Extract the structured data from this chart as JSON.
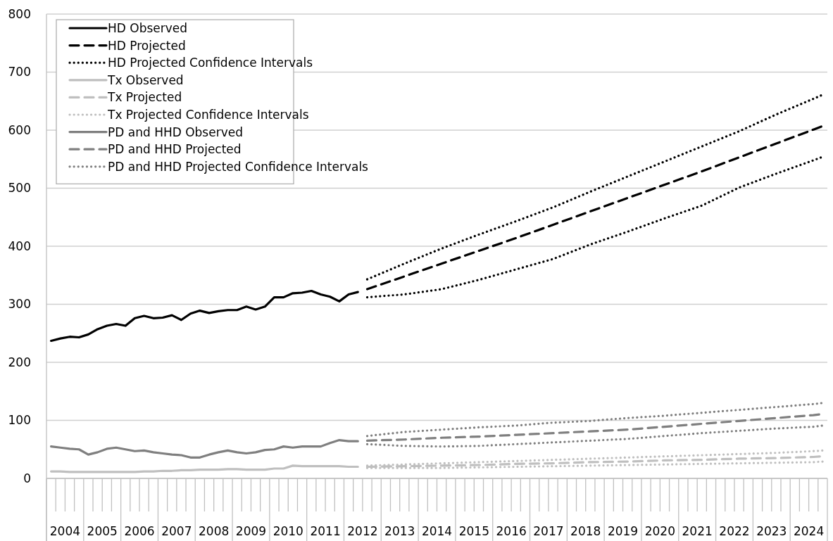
{
  "chart_data": {
    "type": "line",
    "xlim": [
      2004,
      2025
    ],
    "ylim": [
      0,
      800
    ],
    "yticks": [
      0,
      100,
      200,
      300,
      400,
      500,
      600,
      700,
      800
    ],
    "grid": "y",
    "legend": "top left",
    "xticks": [
      {
        "value": 2004,
        "label": null
      },
      {
        "value": 2004.25,
        "label": null
      },
      {
        "value": 2004.5,
        "label": "2004"
      },
      {
        "value": 2004.75,
        "label": null
      },
      {
        "value": 2005,
        "label": null
      },
      {
        "value": 2005.25,
        "label": null
      },
      {
        "value": 2005.5,
        "label": "2005"
      },
      {
        "value": 2005.75,
        "label": null
      },
      {
        "value": 2006,
        "label": null
      },
      {
        "value": 2006.25,
        "label": null
      },
      {
        "value": 2006.5,
        "label": "2006"
      },
      {
        "value": 2006.75,
        "label": null
      },
      {
        "value": 2007,
        "label": null
      },
      {
        "value": 2007.25,
        "label": null
      },
      {
        "value": 2007.5,
        "label": "2007"
      },
      {
        "value": 2007.75,
        "label": null
      },
      {
        "value": 2008,
        "label": null
      },
      {
        "value": 2008.25,
        "label": null
      },
      {
        "value": 2008.5,
        "label": "2008"
      },
      {
        "value": 2008.75,
        "label": null
      },
      {
        "value": 2009,
        "label": null
      },
      {
        "value": 2009.25,
        "label": null
      },
      {
        "value": 2009.5,
        "label": "2009"
      },
      {
        "value": 2009.75,
        "label": null
      },
      {
        "value": 2010,
        "label": null
      },
      {
        "value": 2010.25,
        "label": null
      },
      {
        "value": 2010.5,
        "label": "2010"
      },
      {
        "value": 2010.75,
        "label": null
      },
      {
        "value": 2011,
        "label": null
      },
      {
        "value": 2011.25,
        "label": null
      },
      {
        "value": 2011.5,
        "label": "2011"
      },
      {
        "value": 2011.75,
        "label": null
      },
      {
        "value": 2012,
        "label": null
      },
      {
        "value": 2012.25,
        "label": null
      },
      {
        "value": 2012.5,
        "label": "2012"
      },
      {
        "value": 2012.75,
        "label": null
      },
      {
        "value": 2013,
        "label": null
      },
      {
        "value": 2013.25,
        "label": null
      },
      {
        "value": 2013.5,
        "label": "2013"
      },
      {
        "value": 2013.75,
        "label": null
      },
      {
        "value": 2014,
        "label": null
      },
      {
        "value": 2014.25,
        "label": null
      },
      {
        "value": 2014.5,
        "label": "2014"
      },
      {
        "value": 2014.75,
        "label": null
      },
      {
        "value": 2015,
        "label": null
      },
      {
        "value": 2015.25,
        "label": null
      },
      {
        "value": 2015.5,
        "label": "2015"
      },
      {
        "value": 2015.75,
        "label": null
      },
      {
        "value": 2016,
        "label": null
      },
      {
        "value": 2016.25,
        "label": null
      },
      {
        "value": 2016.5,
        "label": "2016"
      },
      {
        "value": 2016.75,
        "label": null
      },
      {
        "value": 2017,
        "label": null
      },
      {
        "value": 2017.25,
        "label": null
      },
      {
        "value": 2017.5,
        "label": "2017"
      },
      {
        "value": 2017.75,
        "label": null
      },
      {
        "value": 2018,
        "label": null
      },
      {
        "value": 2018.25,
        "label": null
      },
      {
        "value": 2018.5,
        "label": "2018"
      },
      {
        "value": 2018.75,
        "label": null
      },
      {
        "value": 2019,
        "label": null
      },
      {
        "value": 2019.25,
        "label": null
      },
      {
        "value": 2019.5,
        "label": "2019"
      },
      {
        "value": 2019.75,
        "label": null
      },
      {
        "value": 2020,
        "label": null
      },
      {
        "value": 2020.25,
        "label": null
      },
      {
        "value": 2020.5,
        "label": "2020"
      },
      {
        "value": 2020.75,
        "label": null
      },
      {
        "value": 2021,
        "label": null
      },
      {
        "value": 2021.25,
        "label": null
      },
      {
        "value": 2021.5,
        "label": "2021"
      },
      {
        "value": 2021.75,
        "label": null
      },
      {
        "value": 2022,
        "label": null
      },
      {
        "value": 2022.25,
        "label": null
      },
      {
        "value": 2022.5,
        "label": "2022"
      },
      {
        "value": 2022.75,
        "label": null
      },
      {
        "value": 2023,
        "label": null
      },
      {
        "value": 2023.25,
        "label": null
      },
      {
        "value": 2023.5,
        "label": "2023"
      },
      {
        "value": 2023.75,
        "label": null
      },
      {
        "value": 2024,
        "label": null
      },
      {
        "value": 2024.25,
        "label": null
      },
      {
        "value": 2024.5,
        "label": "2024"
      },
      {
        "value": 2024.75,
        "label": null
      },
      {
        "value": 2025,
        "label": null
      }
    ],
    "series": [
      {
        "name": "HD Observed",
        "color": "#000000",
        "line_style": "solid",
        "x": [
          2004.125,
          2004.375,
          2004.625,
          2004.875,
          2005.125,
          2005.375,
          2005.625,
          2005.875,
          2006.125,
          2006.375,
          2006.625,
          2006.875,
          2007.125,
          2007.375,
          2007.625,
          2007.875,
          2008.125,
          2008.375,
          2008.625,
          2008.875,
          2009.125,
          2009.375,
          2009.625,
          2009.875,
          2010.125,
          2010.375,
          2010.625,
          2010.875,
          2011.125,
          2011.375,
          2011.625,
          2011.875,
          2012.125,
          2012.375
        ],
        "values": [
          237,
          241,
          244,
          243,
          248,
          257,
          263,
          266,
          263,
          276,
          280,
          276,
          277,
          281,
          273,
          284,
          289,
          285,
          288,
          290,
          290,
          296,
          291,
          296,
          312,
          312,
          319,
          320,
          323,
          317,
          313,
          305,
          317,
          321
        ]
      },
      {
        "name": "HD Projected",
        "color": "#000000",
        "line_style": "dashed",
        "x": [
          2012.625,
          2013.625,
          2014.625,
          2015.625,
          2016.625,
          2017.625,
          2018.625,
          2019.625,
          2020.625,
          2021.625,
          2022.625,
          2023.625,
          2024.625,
          2024.875
        ],
        "values": [
          326,
          348,
          370,
          392,
          414,
          437,
          460,
          483,
          506,
          529,
          553,
          577,
          601,
          607
        ]
      },
      {
        "name": "HD Projected Confidence Intervals",
        "color": "#000000",
        "line_style": "dotted",
        "x": [
          2012.625,
          2013.625,
          2014.625,
          2015.625,
          2016.625,
          2017.625,
          2018.625,
          2019.625,
          2020.625,
          2021.625,
          2022.625,
          2023.625,
          2024.625,
          2024.875
        ],
        "values": [
          343,
          370,
          396,
          420,
          443,
          467,
          494,
          520,
          546,
          572,
          598,
          627,
          654,
          661
        ]
      },
      {
        "color": "#000000",
        "line_style": "dotted",
        "x": [
          2012.625,
          2013.625,
          2014.625,
          2015.625,
          2016.625,
          2017.625,
          2018.625,
          2019.625,
          2020.625,
          2021.625,
          2022.625,
          2023.625,
          2024.625,
          2024.875
        ],
        "values": [
          312,
          317,
          326,
          342,
          360,
          378,
          403,
          425,
          448,
          470,
          501,
          525,
          548,
          554
        ]
      },
      {
        "name": "Tx Observed",
        "color": "#bfbfbf",
        "line_style": "solid",
        "x": [
          2004.125,
          2004.375,
          2004.625,
          2004.875,
          2005.125,
          2005.375,
          2005.625,
          2005.875,
          2006.125,
          2006.375,
          2006.625,
          2006.875,
          2007.125,
          2007.375,
          2007.625,
          2007.875,
          2008.125,
          2008.375,
          2008.625,
          2008.875,
          2009.125,
          2009.375,
          2009.625,
          2009.875,
          2010.125,
          2010.375,
          2010.625,
          2010.875,
          2011.125,
          2011.375,
          2011.625,
          2011.875,
          2012.125,
          2012.375
        ],
        "values": [
          12,
          12,
          11,
          11,
          11,
          11,
          11,
          11,
          11,
          11,
          12,
          12,
          13,
          13,
          14,
          14,
          15,
          15,
          15,
          16,
          16,
          15,
          15,
          15,
          17,
          17,
          22,
          21,
          21,
          21,
          21,
          21,
          20,
          20
        ]
      },
      {
        "name": "Tx Projected",
        "color": "#bfbfbf",
        "line_style": "dashed",
        "x": [
          2012.625,
          2013.625,
          2014.625,
          2015.625,
          2016.625,
          2017.625,
          2018.625,
          2019.625,
          2020.625,
          2021.625,
          2022.625,
          2023.625,
          2024.625,
          2024.875
        ],
        "values": [
          20,
          21,
          22,
          23,
          25,
          26,
          28,
          29,
          31,
          32,
          34,
          35,
          37,
          38
        ]
      },
      {
        "name": "Tx Projected Confidence Intervals",
        "color": "#bfbfbf",
        "line_style": "dotted",
        "x": [
          2012.625,
          2013.625,
          2014.625,
          2015.625,
          2016.625,
          2017.625,
          2018.625,
          2019.625,
          2020.625,
          2021.625,
          2022.625,
          2023.625,
          2024.625,
          2024.875
        ],
        "values": [
          22,
          24,
          26,
          28,
          30,
          32,
          34,
          36,
          38,
          40,
          42,
          44,
          47,
          48
        ]
      },
      {
        "color": "#bfbfbf",
        "line_style": "dotted",
        "x": [
          2012.625,
          2013.625,
          2014.625,
          2015.625,
          2016.625,
          2017.625,
          2018.625,
          2019.625,
          2020.625,
          2021.625,
          2022.625,
          2023.625,
          2024.625,
          2024.875
        ],
        "values": [
          18,
          18,
          18,
          19,
          20,
          21,
          22,
          23,
          24,
          25,
          26,
          27,
          28,
          29
        ]
      },
      {
        "name": "PD and HHD Observed",
        "color": "#7f7f7f",
        "line_style": "solid",
        "x": [
          2004.125,
          2004.375,
          2004.625,
          2004.875,
          2005.125,
          2005.375,
          2005.625,
          2005.875,
          2006.125,
          2006.375,
          2006.625,
          2006.875,
          2007.125,
          2007.375,
          2007.625,
          2007.875,
          2008.125,
          2008.375,
          2008.625,
          2008.875,
          2009.125,
          2009.375,
          2009.625,
          2009.875,
          2010.125,
          2010.375,
          2010.625,
          2010.875,
          2011.125,
          2011.375,
          2011.625,
          2011.875,
          2012.125,
          2012.375
        ],
        "values": [
          55,
          53,
          51,
          50,
          41,
          45,
          51,
          53,
          50,
          47,
          48,
          45,
          43,
          41,
          40,
          36,
          36,
          41,
          45,
          48,
          45,
          43,
          45,
          49,
          50,
          55,
          53,
          55,
          55,
          55,
          61,
          66,
          64,
          64
        ]
      },
      {
        "name": "PD and HHD Projected",
        "color": "#7f7f7f",
        "line_style": "dashed",
        "x": [
          2012.625,
          2013.625,
          2014.625,
          2015.625,
          2016.625,
          2017.625,
          2018.625,
          2019.625,
          2020.625,
          2021.625,
          2022.625,
          2023.625,
          2024.625,
          2024.875
        ],
        "values": [
          65,
          67,
          70,
          72,
          75,
          78,
          81,
          84,
          89,
          94,
          99,
          104,
          109,
          111
        ]
      },
      {
        "name": "PD and HHD Projected Confidence Intervals",
        "color": "#7f7f7f",
        "line_style": "dotted",
        "x": [
          2012.625,
          2013.625,
          2014.625,
          2015.625,
          2016.625,
          2017.625,
          2018.625,
          2019.625,
          2020.625,
          2021.625,
          2022.625,
          2023.625,
          2024.625,
          2024.875
        ],
        "values": [
          73,
          80,
          84,
          88,
          91,
          96,
          99,
          104,
          108,
          113,
          118,
          123,
          128,
          130
        ]
      },
      {
        "color": "#7f7f7f",
        "line_style": "dotted",
        "x": [
          2012.625,
          2013.625,
          2014.625,
          2015.625,
          2016.625,
          2017.625,
          2018.625,
          2019.625,
          2020.625,
          2021.625,
          2022.625,
          2023.625,
          2024.625,
          2024.875
        ],
        "values": [
          59,
          56,
          55,
          56,
          59,
          62,
          65,
          68,
          73,
          78,
          82,
          86,
          89,
          91
        ]
      }
    ]
  }
}
